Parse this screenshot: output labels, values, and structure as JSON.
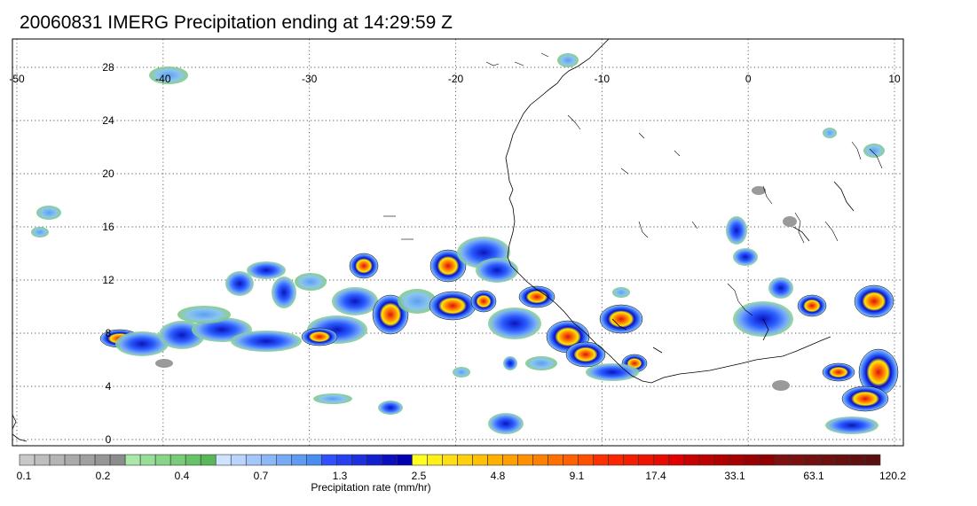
{
  "title": "20060831 IMERG Precipitation ending at 14:29:59 Z",
  "map": {
    "lon_range": [
      -50,
      10
    ],
    "lat_range": [
      -1,
      29
    ],
    "lon_ticks": [
      -50,
      -40,
      -30,
      -20,
      -10,
      0,
      10
    ],
    "lon_tick_labels": [
      "-50",
      "-40",
      "-30",
      "-20",
      "-10",
      "0",
      "10"
    ],
    "lat_ticks": [
      0,
      4,
      8,
      12,
      16,
      20,
      24,
      28
    ],
    "lat_tick_labels": [
      "0",
      "4",
      "8",
      "12",
      "16",
      "20",
      "24",
      "28"
    ],
    "grid": "dotted",
    "features": [
      "West African coastline",
      "precipitation rain cells"
    ]
  },
  "colorbar": {
    "title": "Precipitation rate (mm/hr)",
    "tick_labels": [
      "0.1",
      "0.2",
      "0.4",
      "0.7",
      "1.3",
      "2.5",
      "4.8",
      "9.1",
      "17.4",
      "33.1",
      "63.1",
      "120.2"
    ],
    "groups": [
      {
        "n": 7,
        "from": "#c8c8c8",
        "to": "#8c8c8c"
      },
      {
        "n": 6,
        "from": "#a8e8a8",
        "to": "#58b858"
      },
      {
        "n": 7,
        "from": "#d0e4ff",
        "to": "#4a8cf0"
      },
      {
        "n": 6,
        "from": "#3050ff",
        "to": "#0000b0"
      },
      {
        "n": 6,
        "from": "#ffff20",
        "to": "#ffb000"
      },
      {
        "n": 6,
        "from": "#ffa000",
        "to": "#ff5000"
      },
      {
        "n": 6,
        "from": "#ff3000",
        "to": "#e00000"
      },
      {
        "n": 6,
        "from": "#c80000",
        "to": "#900000"
      },
      {
        "n": 7,
        "from": "#801010",
        "to": "#5a1010"
      }
    ]
  }
}
